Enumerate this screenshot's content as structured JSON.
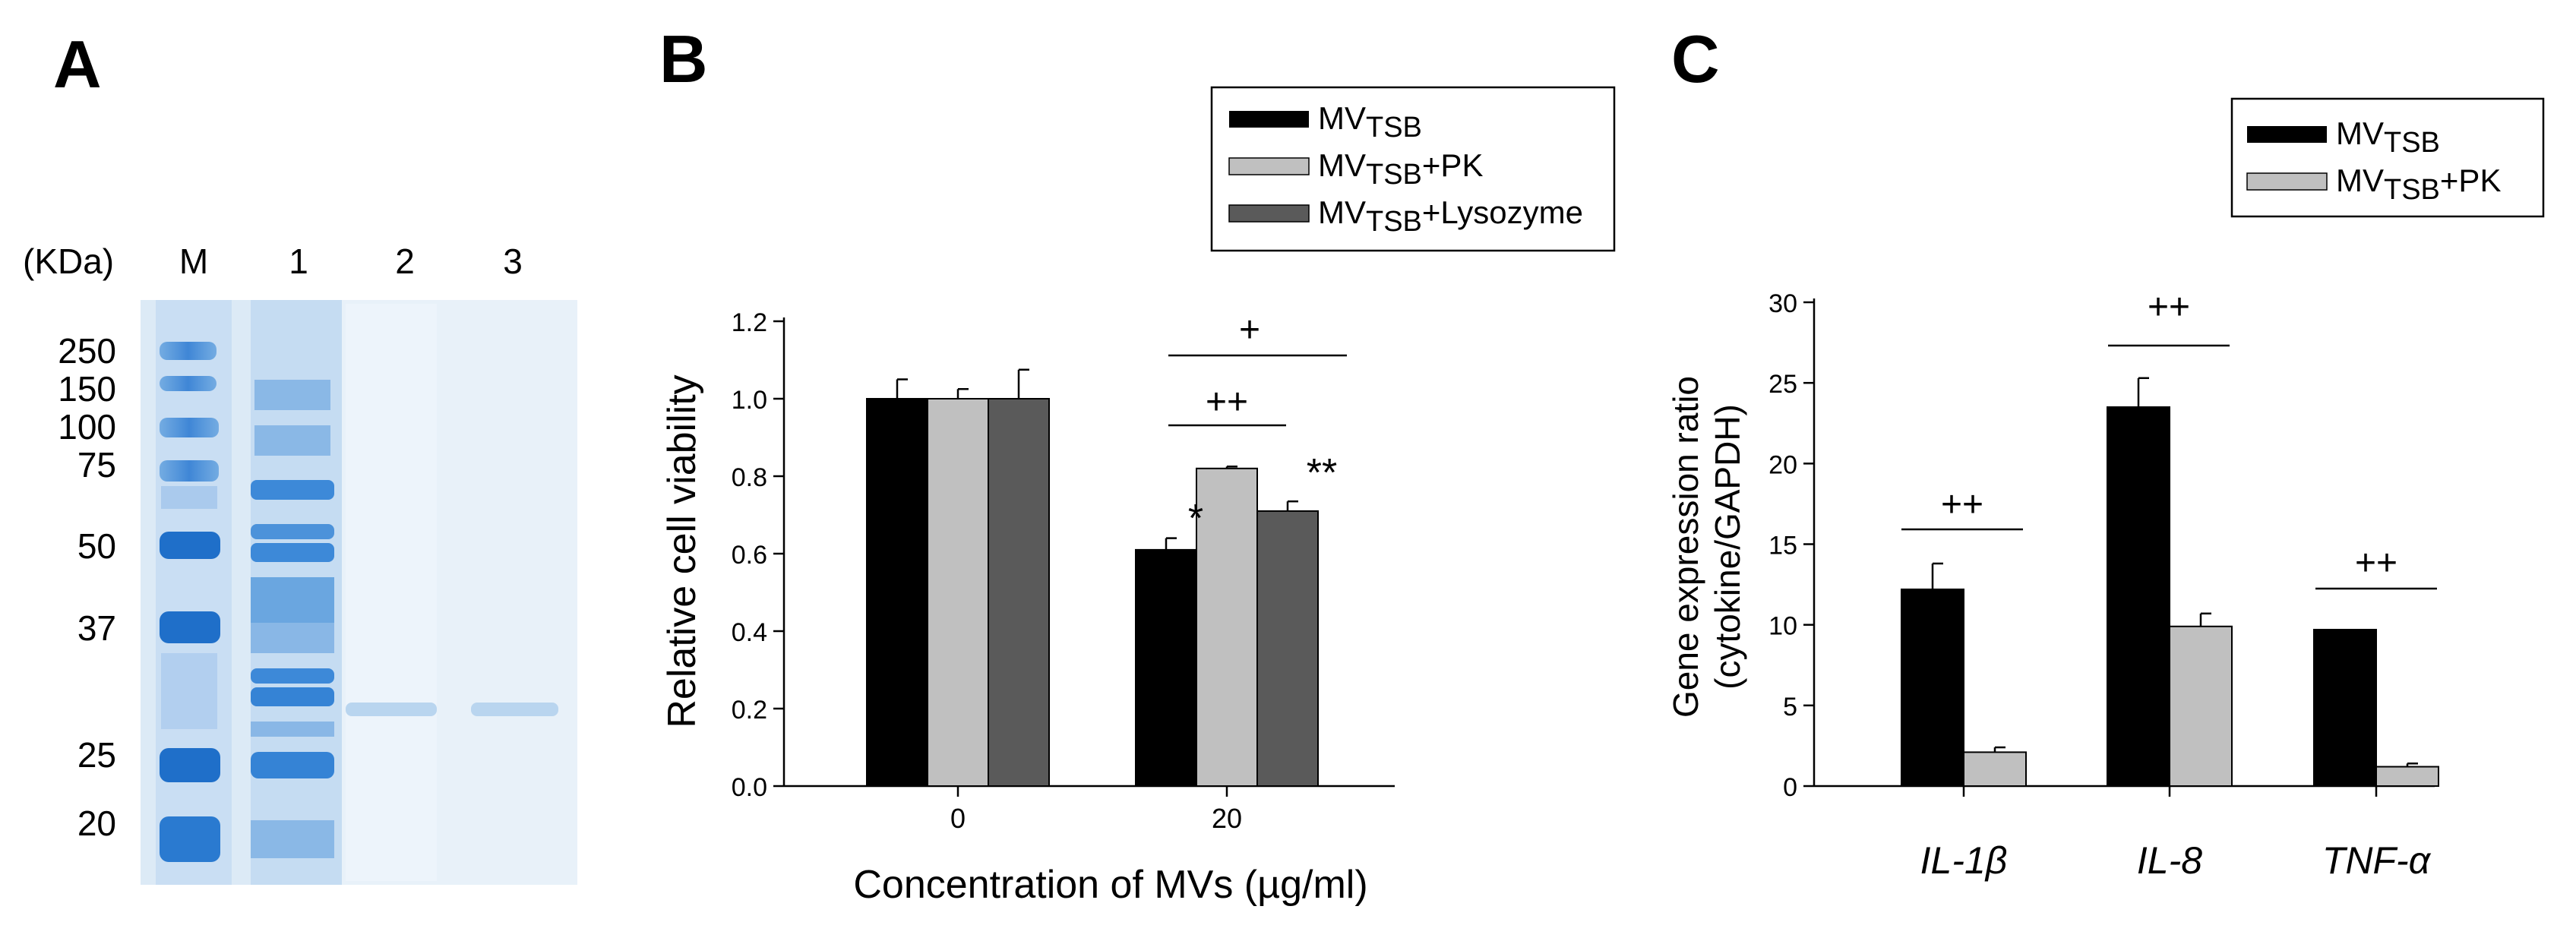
{
  "panel_a": {
    "label": "A",
    "kda_label": "(KDa)",
    "lane_labels": [
      "M",
      "1",
      "2",
      "3"
    ],
    "marker_sizes": [
      "250",
      "150",
      "100",
      "75",
      "50",
      "37",
      "25",
      "20"
    ]
  },
  "chart_data": [
    {
      "panel": "B",
      "type": "bar",
      "categories": [
        "0",
        "20"
      ],
      "series": [
        {
          "name_main": "MV",
          "name_sub": "TSB",
          "name_suffix": "",
          "color": "#000000",
          "values": [
            1.0,
            0.61
          ],
          "errors": [
            0.05,
            0.03
          ]
        },
        {
          "name_main": "MV",
          "name_sub": "TSB",
          "name_suffix": "+PK",
          "color": "#c0c0c0",
          "values": [
            1.0,
            0.82
          ],
          "errors": [
            0.025,
            0.005
          ]
        },
        {
          "name_main": "MV",
          "name_sub": "TSB",
          "name_suffix": "+Lysozyme",
          "color": "#5a5a5a",
          "values": [
            1.0,
            0.71
          ],
          "errors": [
            0.075,
            0.025
          ]
        }
      ],
      "xlabel": "Concentration of MVs (µg/ml)",
      "ylabel": "Relative cell viability",
      "ylim": [
        0,
        1.2
      ],
      "yticks": [
        "0.0",
        "0.2",
        "0.4",
        "0.6",
        "0.8",
        "1.0",
        "1.2"
      ],
      "annotations": {
        "star_1": "*",
        "star_2": "**",
        "plus_pk": "++",
        "plus_lys": "+"
      },
      "legend": "top-right"
    },
    {
      "panel": "C",
      "type": "bar",
      "categories": [
        "IL-1β",
        "IL-8",
        "TNF-α"
      ],
      "series": [
        {
          "name_main": "MV",
          "name_sub": "TSB",
          "name_suffix": "",
          "color": "#000000",
          "values": [
            12.2,
            23.5,
            9.7
          ],
          "errors": [
            1.6,
            1.8,
            0
          ]
        },
        {
          "name_main": "MV",
          "name_sub": "TSB",
          "name_suffix": "+PK",
          "color": "#c0c0c0",
          "values": [
            2.1,
            9.9,
            1.2
          ],
          "errors": [
            0.3,
            0.8,
            0.2
          ]
        }
      ],
      "ylabel_line1": "Gene expression ratio",
      "ylabel_line2": "(cytokine/GAPDH)",
      "ylim": [
        0,
        30
      ],
      "yticks": [
        "0",
        "5",
        "10",
        "15",
        "20",
        "25",
        "30"
      ],
      "annotations": {
        "sig_il1b": "++",
        "sig_il8": "++",
        "sig_tnf": "++"
      },
      "legend": "top-right"
    }
  ],
  "panel_b_label": "B",
  "panel_c_label": "C"
}
